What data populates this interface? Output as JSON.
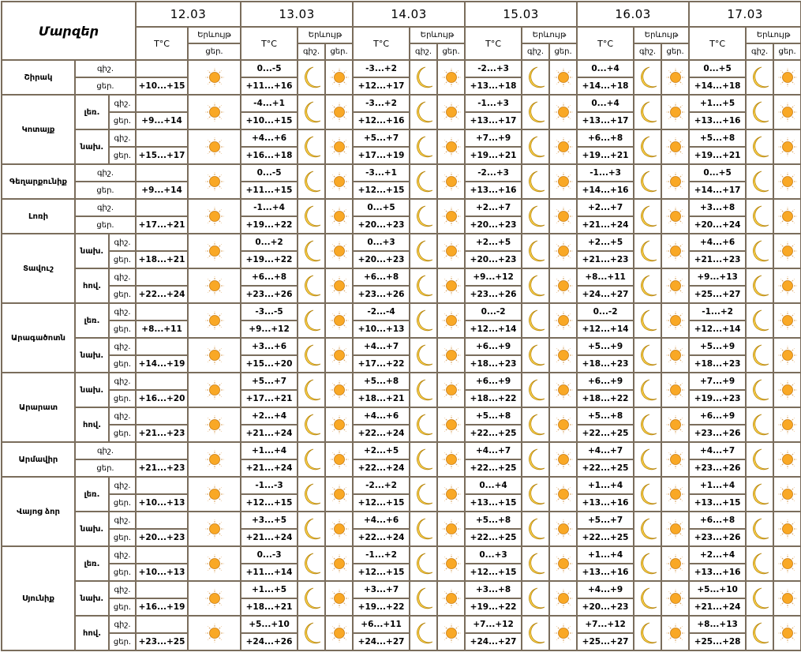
{
  "header": {
    "title": "Մարզեր",
    "temp_label": "T°C",
    "phenomenon_label": "Երևույթ",
    "night_label": "գիշ.",
    "day_label": "ցեր.",
    "first_date": "12.03",
    "dates": [
      "13.03",
      "14.03",
      "15.03",
      "16.03",
      "17.03"
    ]
  },
  "icons": {
    "night": "moon-icon",
    "day": "sun-icon"
  },
  "colors": {
    "border": "#7a6d5c",
    "sun": "#f9a825",
    "moon": "#fcd34d"
  },
  "regions": [
    {
      "name": "Շիրակ",
      "zones": [
        {
          "zone": "",
          "day12": "+10...+15",
          "forecast": [
            {
              "night": "0...-5",
              "day": "+11...+16"
            },
            {
              "night": "-3...+2",
              "day": "+12...+17"
            },
            {
              "night": "-2...+3",
              "day": "+13...+18"
            },
            {
              "night": "0...+4",
              "day": "+14...+18"
            },
            {
              "night": "0...+5",
              "day": "+14...+18"
            }
          ]
        }
      ]
    },
    {
      "name": "Կոտայք",
      "zones": [
        {
          "zone": "լեռ.",
          "day12": "+9...+14",
          "forecast": [
            {
              "night": "-4...+1",
              "day": "+10...+15"
            },
            {
              "night": "-3...+2",
              "day": "+12...+16"
            },
            {
              "night": "-1...+3",
              "day": "+13...+17"
            },
            {
              "night": "0...+4",
              "day": "+13...+17"
            },
            {
              "night": "+1...+5",
              "day": "+13...+16"
            }
          ]
        },
        {
          "zone": "նախ.",
          "day12": "+15...+17",
          "forecast": [
            {
              "night": "+4...+6",
              "day": "+16...+18"
            },
            {
              "night": "+5...+7",
              "day": "+17...+19"
            },
            {
              "night": "+7...+9",
              "day": "+19...+21"
            },
            {
              "night": "+6...+8",
              "day": "+19...+21"
            },
            {
              "night": "+5...+8",
              "day": "+19...+21"
            }
          ]
        }
      ]
    },
    {
      "name": "Գեղարքունիք",
      "zones": [
        {
          "zone": "",
          "day12": "+9...+14",
          "forecast": [
            {
              "night": "0...-5",
              "day": "+11...+15"
            },
            {
              "night": "-3...+1",
              "day": "+12...+15"
            },
            {
              "night": "-2...+3",
              "day": "+13...+16"
            },
            {
              "night": "-1...+3",
              "day": "+14...+16"
            },
            {
              "night": "0...+5",
              "day": "+14...+17"
            }
          ]
        }
      ]
    },
    {
      "name": "Լոռի",
      "zones": [
        {
          "zone": "",
          "day12": "+17...+21",
          "forecast": [
            {
              "night": "-1...+4",
              "day": "+19...+22"
            },
            {
              "night": "0...+5",
              "day": "+20...+23"
            },
            {
              "night": "+2...+7",
              "day": "+20...+23"
            },
            {
              "night": "+2...+7",
              "day": "+21...+24"
            },
            {
              "night": "+3...+8",
              "day": "+20...+24"
            }
          ]
        }
      ]
    },
    {
      "name": "Տավուշ",
      "zones": [
        {
          "zone": "նախ.",
          "day12": "+18...+21",
          "forecast": [
            {
              "night": "0...+2",
              "day": "+19...+22"
            },
            {
              "night": "0...+3",
              "day": "+20...+23"
            },
            {
              "night": "+2...+5",
              "day": "+20...+23"
            },
            {
              "night": "+2...+5",
              "day": "+21...+23"
            },
            {
              "night": "+4...+6",
              "day": "+21...+23"
            }
          ]
        },
        {
          "zone": "հով.",
          "day12": "+22...+24",
          "forecast": [
            {
              "night": "+6...+8",
              "day": "+23...+26"
            },
            {
              "night": "+6...+8",
              "day": "+23...+26"
            },
            {
              "night": "+9...+12",
              "day": "+23...+26"
            },
            {
              "night": "+8...+11",
              "day": "+24...+27"
            },
            {
              "night": "+9...+13",
              "day": "+25...+27"
            }
          ]
        }
      ]
    },
    {
      "name": "Արագածոտն",
      "zones": [
        {
          "zone": "լեռ.",
          "day12": "+8...+11",
          "forecast": [
            {
              "night": "-3...-5",
              "day": "+9...+12"
            },
            {
              "night": "-2...-4",
              "day": "+10...+13"
            },
            {
              "night": "0...-2",
              "day": "+12...+14"
            },
            {
              "night": "0...-2",
              "day": "+12...+14"
            },
            {
              "night": "-1...+2",
              "day": "+12...+14"
            }
          ]
        },
        {
          "zone": "նախ.",
          "day12": "+14...+19",
          "forecast": [
            {
              "night": "+3...+6",
              "day": "+15...+20"
            },
            {
              "night": "+4...+7",
              "day": "+17...+22"
            },
            {
              "night": "+6...+9",
              "day": "+18...+23"
            },
            {
              "night": "+5...+9",
              "day": "+18...+23"
            },
            {
              "night": "+5...+9",
              "day": "+18...+23"
            }
          ]
        }
      ]
    },
    {
      "name": "Արարատ",
      "zones": [
        {
          "zone": "նախ.",
          "day12": "+16...+20",
          "forecast": [
            {
              "night": "+5...+7",
              "day": "+17...+21"
            },
            {
              "night": "+5...+8",
              "day": "+18...+21"
            },
            {
              "night": "+6...+9",
              "day": "+18...+22"
            },
            {
              "night": "+6...+9",
              "day": "+18...+22"
            },
            {
              "night": "+7...+9",
              "day": "+19...+23"
            }
          ]
        },
        {
          "zone": "հով.",
          "day12": "+21...+23",
          "forecast": [
            {
              "night": "+2...+4",
              "day": "+21...+24"
            },
            {
              "night": "+4...+6",
              "day": "+22...+24"
            },
            {
              "night": "+5...+8",
              "day": "+22...+25"
            },
            {
              "night": "+5...+8",
              "day": "+22...+25"
            },
            {
              "night": "+6...+9",
              "day": "+23...+26"
            }
          ]
        }
      ]
    },
    {
      "name": "Արմավիր",
      "zones": [
        {
          "zone": "",
          "day12": "+21...+23",
          "forecast": [
            {
              "night": "+1...+4",
              "day": "+21...+24"
            },
            {
              "night": "+2...+5",
              "day": "+22...+24"
            },
            {
              "night": "+4...+7",
              "day": "+22...+25"
            },
            {
              "night": "+4...+7",
              "day": "+22...+25"
            },
            {
              "night": "+4...+7",
              "day": "+23...+26"
            }
          ]
        }
      ]
    },
    {
      "name": "Վայոց ձոր",
      "zones": [
        {
          "zone": "լեռ.",
          "day12": "+10...+13",
          "forecast": [
            {
              "night": "-1...-3",
              "day": "+12...+15"
            },
            {
              "night": "-2...+2",
              "day": "+12...+15"
            },
            {
              "night": "0...+4",
              "day": "+13...+15"
            },
            {
              "night": "+1...+4",
              "day": "+13...+16"
            },
            {
              "night": "+1...+4",
              "day": "+13...+15"
            }
          ]
        },
        {
          "zone": "նախ.",
          "day12": "+20...+23",
          "forecast": [
            {
              "night": "+3...+5",
              "day": "+21...+24"
            },
            {
              "night": "+4...+6",
              "day": "+22...+24"
            },
            {
              "night": "+5...+8",
              "day": "+22...+25"
            },
            {
              "night": "+5...+7",
              "day": "+22...+25"
            },
            {
              "night": "+6...+8",
              "day": "+23...+26"
            }
          ]
        }
      ]
    },
    {
      "name": "Սյունիք",
      "zones": [
        {
          "zone": "լեռ.",
          "day12": "+10...+13",
          "forecast": [
            {
              "night": "0...-3",
              "day": "+11...+14"
            },
            {
              "night": "-1...+2",
              "day": "+12...+15"
            },
            {
              "night": "0...+3",
              "day": "+12...+15"
            },
            {
              "night": "+1...+4",
              "day": "+13...+16"
            },
            {
              "night": "+2...+4",
              "day": "+13...+16"
            }
          ]
        },
        {
          "zone": "նախ.",
          "day12": "+16...+19",
          "forecast": [
            {
              "night": "+1...+5",
              "day": "+18...+21"
            },
            {
              "night": "+3...+7",
              "day": "+19...+22"
            },
            {
              "night": "+3...+8",
              "day": "+19...+22"
            },
            {
              "night": "+4...+9",
              "day": "+20...+23"
            },
            {
              "night": "+5...+10",
              "day": "+21...+24"
            }
          ]
        },
        {
          "zone": "հով.",
          "day12": "+23...+25",
          "forecast": [
            {
              "night": "+5...+10",
              "day": "+24...+26"
            },
            {
              "night": "+6...+11",
              "day": "+24...+27"
            },
            {
              "night": "+7...+12",
              "day": "+24...+27"
            },
            {
              "night": "+7...+12",
              "day": "+25...+27"
            },
            {
              "night": "+8...+13",
              "day": "+25...+28"
            }
          ]
        }
      ]
    }
  ]
}
